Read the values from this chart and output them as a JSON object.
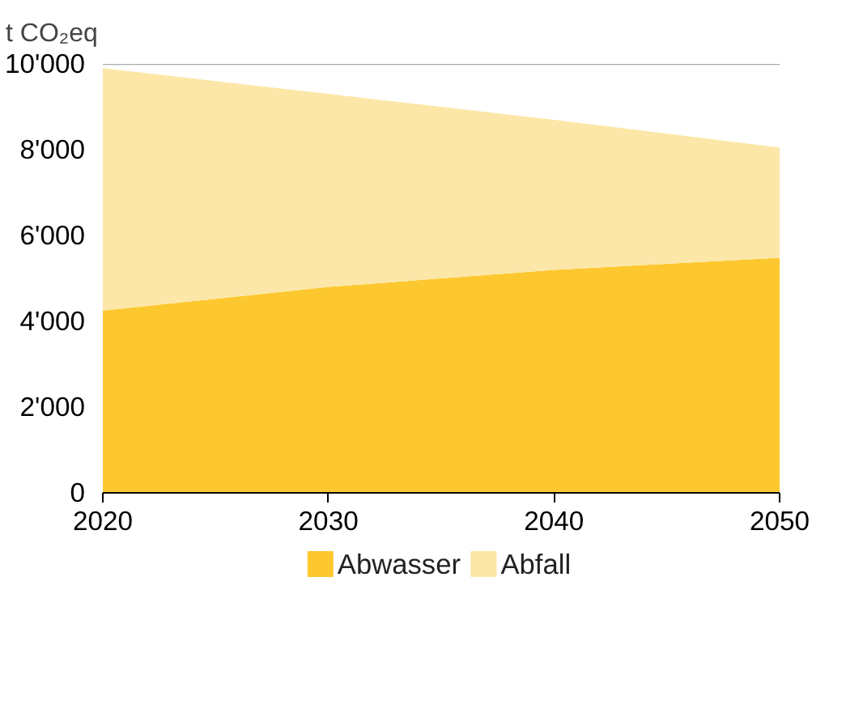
{
  "chart_data": {
    "type": "area",
    "stacked": true,
    "ylabel": "t CO₂eq",
    "x": [
      2020,
      2030,
      2040,
      2050
    ],
    "series": [
      {
        "name": "Abwasser",
        "color": "#fdc82f",
        "values": [
          4250,
          4800,
          5200,
          5480
        ]
      },
      {
        "name": "Abfall",
        "color": "#fde7a8",
        "values": [
          5650,
          4500,
          3500,
          2570
        ]
      }
    ],
    "xlim": [
      2020,
      2050
    ],
    "xticks": [
      2020,
      2030,
      2040,
      2050
    ],
    "ylim": [
      0,
      10000
    ],
    "yticks": [
      0,
      {
        "value": 2000,
        "label": "2'000"
      },
      {
        "value": 4000,
        "label": "4'000"
      },
      {
        "value": 6000,
        "label": "6'000"
      },
      {
        "value": 8000,
        "label": "8'000"
      },
      {
        "value": 10000,
        "label": "10'000"
      }
    ],
    "ref_lines": [
      {
        "axis": "y",
        "value": 10000,
        "color": "#aaaaaa"
      }
    ],
    "legend": "bottom"
  }
}
